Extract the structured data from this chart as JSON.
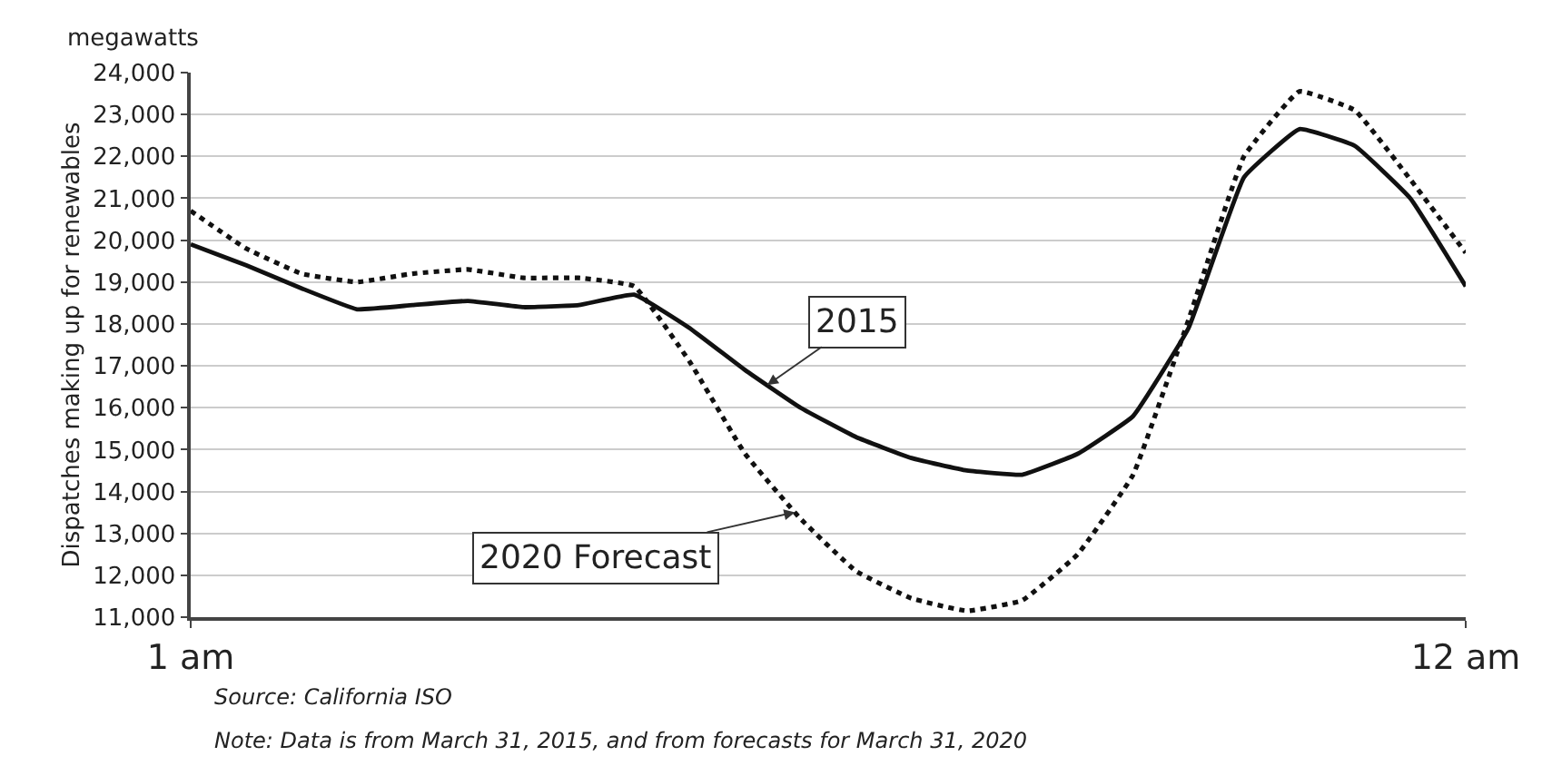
{
  "chart_data": {
    "type": "line",
    "ylabel": "Dispatches making up for renewables",
    "categories": [
      "1 am",
      null,
      null,
      null,
      null,
      null,
      null,
      null,
      null,
      null,
      null,
      null,
      null,
      null,
      null,
      null,
      null,
      null,
      null,
      null,
      null,
      null,
      null,
      "12 am"
    ],
    "series": [
      {
        "name": "2015",
        "color": "#111111",
        "line_style": "solid",
        "values": [
          19900,
          19400,
          18850,
          18350,
          18450,
          18550,
          18400,
          18450,
          18700,
          17900,
          16900,
          16000,
          15300,
          14800,
          14500,
          14400,
          14900,
          15800,
          17900,
          21500,
          22650,
          22250,
          21000,
          18900
        ]
      },
      {
        "name": "2020 Forecast",
        "color": "#111111",
        "line_style": "dotted",
        "values": [
          20700,
          19800,
          19200,
          19000,
          19200,
          19300,
          19100,
          19100,
          18900,
          17100,
          14900,
          13350,
          12100,
          11450,
          11150,
          11400,
          12500,
          14400,
          18100,
          22000,
          23550,
          23100,
          21450,
          19700
        ]
      }
    ],
    "ylim": [
      11000,
      24000
    ],
    "yticks": [
      {
        "value": 11000,
        "label": "11,000"
      },
      {
        "value": 12000,
        "label": "12,000"
      },
      {
        "value": 13000,
        "label": "13,000"
      },
      {
        "value": 14000,
        "label": "14,000"
      },
      {
        "value": 15000,
        "label": "15,000"
      },
      {
        "value": 16000,
        "label": "16,000"
      },
      {
        "value": 17000,
        "label": "17,000"
      },
      {
        "value": 18000,
        "label": "18,000"
      },
      {
        "value": 19000,
        "label": "19,000"
      },
      {
        "value": 20000,
        "label": "20,000"
      },
      {
        "value": 21000,
        "label": "21,000"
      },
      {
        "value": 22000,
        "label": "22,000"
      },
      {
        "value": 23000,
        "label": "23,000"
      },
      {
        "value": 24000,
        "label": "24,000"
      }
    ],
    "grid": "y",
    "legend": false,
    "marker": "none",
    "annotations": [
      "megawatts",
      "Source: California ISO",
      "Note: Data is from March 31, 2015, and from forecasts for March 31, 2020"
    ]
  }
}
